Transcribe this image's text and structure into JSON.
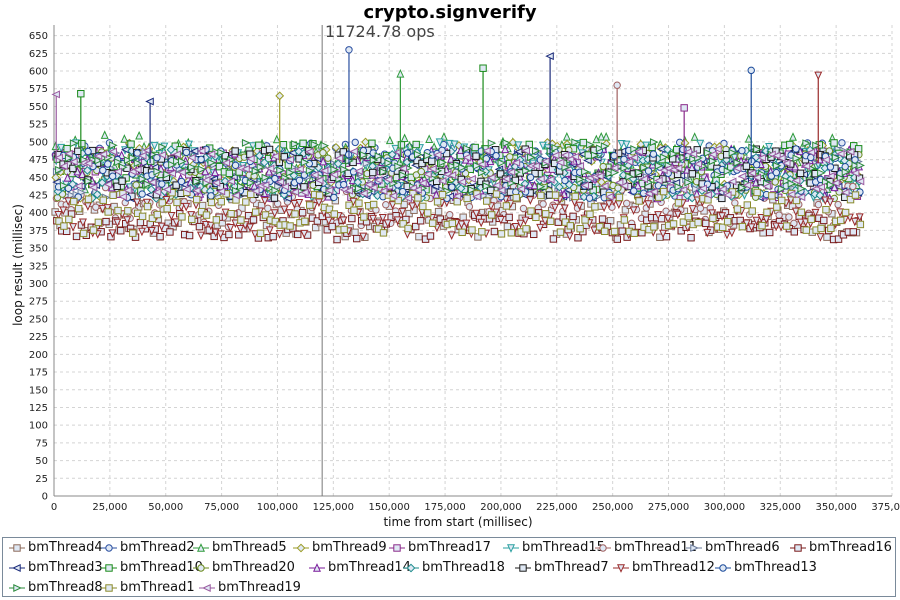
{
  "chart_data": {
    "type": "scatter",
    "title": "crypto.signverify",
    "annotation": "11724.78 ops",
    "annotation_x": 120000,
    "xlabel": "time from start (millisec)",
    "ylabel": "loop result (millisec)",
    "xlim": [
      0,
      375000
    ],
    "ylim": [
      0,
      665
    ],
    "x_ticks": [
      0,
      25000,
      50000,
      75000,
      100000,
      125000,
      150000,
      175000,
      200000,
      225000,
      250000,
      275000,
      300000,
      325000,
      350000,
      375000
    ],
    "x_tick_labels": [
      "0",
      "25,000",
      "50,000",
      "75,000",
      "100,000",
      "125,000",
      "150,000",
      "175,000",
      "200,000",
      "225,000",
      "250,000",
      "275,000",
      "300,000",
      "325,000",
      "350,000",
      "375,000"
    ],
    "y_ticks": [
      0,
      25,
      50,
      75,
      100,
      125,
      150,
      175,
      200,
      225,
      250,
      275,
      300,
      325,
      350,
      375,
      400,
      425,
      450,
      475,
      500,
      525,
      550,
      575,
      600,
      625,
      650
    ],
    "y_tick_labels": [
      "0",
      "25",
      "50",
      "75",
      "100",
      "125",
      "150",
      "175",
      "200",
      "225",
      "250",
      "275",
      "300",
      "325",
      "350",
      "375",
      "400",
      "425",
      "450",
      "475",
      "500",
      "525",
      "550",
      "575",
      "600",
      "625",
      "650"
    ],
    "grid": true,
    "legend_placement": "bottom",
    "series": [
      {
        "name": "bmThread4",
        "color": "#8b6a5a",
        "marker": "square",
        "x_start": 500,
        "x_end": 361000,
        "band": [
          365,
          420
        ],
        "values": []
      },
      {
        "name": "bmThread2",
        "color": "#2a4fa0",
        "marker": "circle",
        "x_start": 500,
        "x_end": 361000,
        "band": [
          420,
          500
        ],
        "values": []
      },
      {
        "name": "bmThread5",
        "color": "#2e9a3a",
        "marker": "triangle-up",
        "x_start": 500,
        "x_end": 361000,
        "band": [
          430,
          510
        ],
        "values": []
      },
      {
        "name": "bmThread9",
        "color": "#9a9a20",
        "marker": "diamond",
        "x_start": 500,
        "x_end": 361000,
        "band": [
          420,
          500
        ],
        "values": []
      },
      {
        "name": "bmThread17",
        "color": "#8a2a8a",
        "marker": "square",
        "x_start": 500,
        "x_end": 361000,
        "band": [
          420,
          490
        ],
        "values": []
      },
      {
        "name": "bmThread15",
        "color": "#2aa0a0",
        "marker": "triangle-down",
        "x_start": 500,
        "x_end": 361000,
        "band": [
          420,
          500
        ],
        "values": []
      },
      {
        "name": "bmThread11",
        "color": "#a06060",
        "marker": "circle",
        "x_start": 500,
        "x_end": 361000,
        "band": [
          380,
          440
        ],
        "values": []
      },
      {
        "name": "bmThread6",
        "color": "#6a7a9a",
        "marker": "triangle-right",
        "x_start": 500,
        "x_end": 361000,
        "band": [
          420,
          490
        ],
        "values": []
      },
      {
        "name": "bmThread16",
        "color": "#7a1a1a",
        "marker": "square",
        "x_start": 500,
        "x_end": 361000,
        "band": [
          362,
          400
        ],
        "values": []
      },
      {
        "name": "bmThread3",
        "color": "#1a2a7a",
        "marker": "triangle-left",
        "x_start": 500,
        "x_end": 361000,
        "band": [
          420,
          490
        ],
        "values": []
      },
      {
        "name": "bmThread10",
        "color": "#1a8a1a",
        "marker": "square",
        "x_start": 500,
        "x_end": 361000,
        "band": [
          430,
          500
        ],
        "values": []
      },
      {
        "name": "bmThread20",
        "color": "#6a8a1a",
        "marker": "circle",
        "x_start": 500,
        "x_end": 361000,
        "band": [
          420,
          490
        ],
        "values": []
      },
      {
        "name": "bmThread14",
        "color": "#7a1a9a",
        "marker": "triangle-up",
        "x_start": 500,
        "x_end": 361000,
        "band": [
          420,
          490
        ],
        "values": []
      },
      {
        "name": "bmThread18",
        "color": "#1a8a8a",
        "marker": "diamond",
        "x_start": 500,
        "x_end": 361000,
        "band": [
          420,
          490
        ],
        "values": []
      },
      {
        "name": "bmThread7",
        "color": "#1a1a1a",
        "marker": "square",
        "x_start": 500,
        "x_end": 361000,
        "band": [
          420,
          490
        ],
        "values": []
      },
      {
        "name": "bmThread12",
        "color": "#9a2a2a",
        "marker": "triangle-down",
        "x_start": 500,
        "x_end": 361000,
        "band": [
          365,
          420
        ],
        "values": []
      },
      {
        "name": "bmThread13",
        "color": "#1a4a9a",
        "marker": "circle",
        "x_start": 500,
        "x_end": 361000,
        "band": [
          420,
          490
        ],
        "values": []
      },
      {
        "name": "bmThread8",
        "color": "#2a8a3a",
        "marker": "triangle-right",
        "x_start": 500,
        "x_end": 361000,
        "band": [
          430,
          500
        ],
        "values": []
      },
      {
        "name": "bmThread1",
        "color": "#8a8a2a",
        "marker": "square",
        "x_start": 500,
        "x_end": 361000,
        "band": [
          370,
          430
        ],
        "values": []
      },
      {
        "name": "bmThread19",
        "color": "#9a5aa0",
        "marker": "triangle-left",
        "x_start": 500,
        "x_end": 361000,
        "band": [
          420,
          490
        ],
        "values": []
      }
    ],
    "notable_points": [
      {
        "series": "bmThread2",
        "x": 132000,
        "y": 630
      },
      {
        "series": "bmThread10",
        "x": 192000,
        "y": 604
      },
      {
        "series": "bmThread3",
        "x": 222000,
        "y": 621
      },
      {
        "series": "bmThread13",
        "x": 312000,
        "y": 601
      },
      {
        "series": "bmThread12",
        "x": 342000,
        "y": 594
      },
      {
        "series": "bmThread5",
        "x": 155000,
        "y": 596
      },
      {
        "series": "bmThread9",
        "x": 101000,
        "y": 565
      },
      {
        "series": "bmThread10",
        "x": 12000,
        "y": 568
      },
      {
        "series": "bmThread3",
        "x": 43000,
        "y": 557
      },
      {
        "series": "bmThread11",
        "x": 252000,
        "y": 580
      },
      {
        "series": "bmThread17",
        "x": 282000,
        "y": 548
      },
      {
        "series": "bmThread19",
        "x": 1000,
        "y": 567
      }
    ]
  }
}
